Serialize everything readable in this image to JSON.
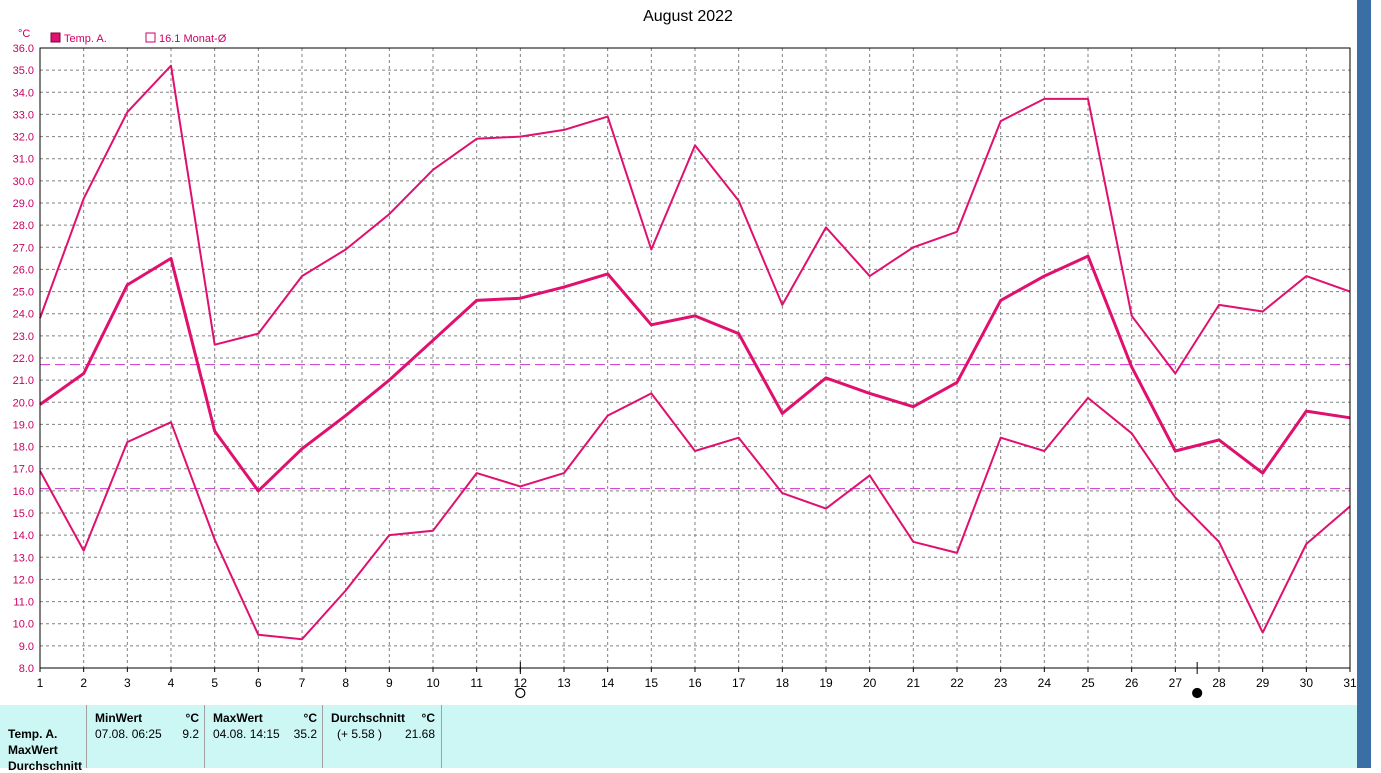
{
  "colors": {
    "accent": "#e0106e",
    "axis_text": "#cc0066",
    "grid": "#808080",
    "avg_line": "#cc33cc",
    "panel_bg": "#ccf7f5"
  },
  "chart_data": {
    "type": "line",
    "title": "August 2022",
    "y_unit": "°C",
    "ylim": [
      8.0,
      36.0
    ],
    "y_step": 1.0,
    "x": [
      1,
      2,
      3,
      4,
      5,
      6,
      7,
      8,
      9,
      10,
      11,
      12,
      13,
      14,
      15,
      16,
      17,
      18,
      19,
      20,
      21,
      22,
      23,
      24,
      25,
      26,
      27,
      28,
      29,
      30,
      31
    ],
    "legend": {
      "series_label": "Temp. A.",
      "avg_label": "16.1 Monat-Ø"
    },
    "grid": true,
    "series": [
      {
        "values": [
          23.8,
          29.2,
          33.1,
          35.2,
          22.6,
          23.1,
          25.7,
          26.9,
          28.5,
          30.5,
          31.9,
          32.0,
          32.3,
          32.9,
          26.9,
          31.6,
          29.1,
          24.4,
          27.9,
          25.7,
          27.0,
          27.7,
          32.7,
          33.7,
          33.7,
          23.9,
          21.3,
          24.4,
          24.1,
          25.7,
          25.0
        ],
        "width": 2
      },
      {
        "values": [
          19.9,
          21.3,
          25.3,
          26.5,
          18.7,
          16.0,
          17.9,
          19.4,
          21.0,
          22.8,
          24.6,
          24.7,
          25.2,
          25.8,
          23.5,
          23.9,
          23.1,
          19.5,
          21.1,
          20.4,
          19.8,
          20.9,
          24.6,
          25.7,
          26.6,
          21.6,
          17.8,
          18.3,
          16.8,
          19.6,
          19.3
        ],
        "width": 3
      },
      {
        "values": [
          16.9,
          13.3,
          18.2,
          19.1,
          13.8,
          9.5,
          9.3,
          11.5,
          14.0,
          14.2,
          16.8,
          16.2,
          16.8,
          19.4,
          20.4,
          17.8,
          18.4,
          15.9,
          15.2,
          16.7,
          13.7,
          13.2,
          18.4,
          17.8,
          20.2,
          18.6,
          15.7,
          13.7,
          9.6,
          13.6,
          15.3
        ],
        "width": 2
      }
    ],
    "avg_lines": [
      21.7,
      16.1
    ],
    "moon_phases": [
      {
        "day": 12,
        "phase": "full-moon"
      },
      {
        "day": 27.5,
        "phase": "new-moon"
      }
    ]
  },
  "stats": {
    "row_labels": [
      "Temp. A.",
      "MaxWert",
      "Durchschnitt"
    ],
    "min": {
      "header": "MinWert",
      "unit": "°C",
      "datetime": "07.08.  06:25",
      "value": "9.2"
    },
    "max": {
      "header": "MaxWert",
      "unit": "°C",
      "datetime": "04.08.  14:15",
      "value": "35.2"
    },
    "avg": {
      "header": "Durchschnitt",
      "unit": "°C",
      "diff": "(+ 5.58 )",
      "value": "21.68"
    }
  }
}
